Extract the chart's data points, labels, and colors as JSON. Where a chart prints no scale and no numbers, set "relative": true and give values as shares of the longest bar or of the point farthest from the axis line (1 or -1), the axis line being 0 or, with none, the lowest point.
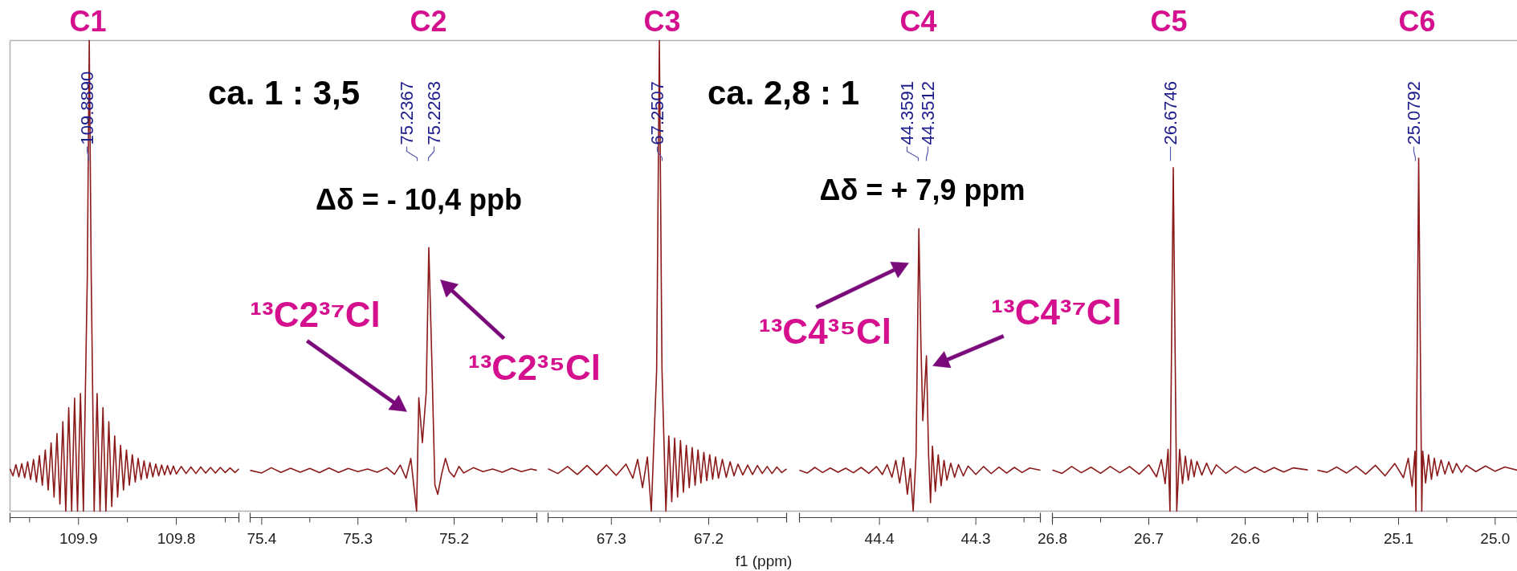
{
  "chart_data": [
    {
      "type": "line",
      "relative": true,
      "color": "#8b1a1a",
      "xlim": [
        109.97,
        109.736
      ],
      "xticks": [
        {
          "value": 109.95,
          "label": null
        },
        109.9,
        {
          "value": 109.85,
          "label": null
        },
        109.8,
        {
          "value": 109.75,
          "label": null
        }
      ],
      "x": [
        109.97,
        109.967,
        109.964,
        109.961,
        109.958,
        109.955,
        109.952,
        109.949,
        109.946,
        109.943,
        109.94,
        109.937,
        109.934,
        109.931,
        109.928,
        109.925,
        109.922,
        109.919,
        109.916,
        109.913,
        109.91,
        109.907,
        109.904,
        109.901,
        109.898,
        109.895,
        109.891,
        109.889,
        109.887,
        109.884,
        109.881,
        109.878,
        109.875,
        109.872,
        109.869,
        109.866,
        109.863,
        109.86,
        109.857,
        109.854,
        109.851,
        109.848,
        109.845,
        109.842,
        109.839,
        109.836,
        109.833,
        109.83,
        109.827,
        109.824,
        109.821,
        109.818,
        109.815,
        109.812,
        109.809,
        109.806,
        109.803,
        109.8,
        109.795,
        109.79,
        109.785,
        109.78,
        109.775,
        109.77,
        109.765,
        109.76,
        109.755,
        109.75,
        109.745,
        109.74,
        109.736
      ],
      "values": [
        0.09,
        0.075,
        0.099,
        0.073,
        0.101,
        0.071,
        0.105,
        0.067,
        0.11,
        0.062,
        0.118,
        0.055,
        0.13,
        0.045,
        0.145,
        0.03,
        0.165,
        0.015,
        0.19,
        0,
        0.22,
        0,
        0.24,
        0,
        0.25,
        0,
        0.5,
        1,
        0.5,
        0,
        0.25,
        0,
        0.22,
        0,
        0.19,
        0.01,
        0.16,
        0.03,
        0.14,
        0.045,
        0.13,
        0.055,
        0.12,
        0.062,
        0.112,
        0.067,
        0.107,
        0.07,
        0.103,
        0.073,
        0.1,
        0.075,
        0.098,
        0.077,
        0.097,
        0.078,
        0.096,
        0.079,
        0.095,
        0.08,
        0.094,
        0.08,
        0.094,
        0.081,
        0.093,
        0.081,
        0.093,
        0.082,
        0.092,
        0.082,
        0.09
      ],
      "annotations": [
        "C1",
        "109.8890"
      ]
    },
    {
      "type": "line",
      "relative": true,
      "color": "#8b1a1a",
      "xlim": [
        75.412,
        75.114
      ],
      "xticks": [
        75.4,
        {
          "value": 75.35,
          "label": null
        },
        75.3,
        {
          "value": 75.25,
          "label": null
        },
        75.2,
        {
          "value": 75.15,
          "label": null
        }
      ],
      "x": [
        75.412,
        75.4,
        75.39,
        75.38,
        75.37,
        75.36,
        75.35,
        75.34,
        75.33,
        75.32,
        75.31,
        75.3,
        75.29,
        75.28,
        75.27,
        75.262,
        75.256,
        75.25,
        75.245,
        75.242,
        75.239,
        75.2367,
        75.233,
        75.229,
        75.2263,
        75.223,
        75.22,
        75.217,
        75.213,
        75.209,
        75.205,
        75.2,
        75.195,
        75.19,
        75.18,
        75.17,
        75.16,
        75.15,
        75.14,
        75.13,
        75.12,
        75.114
      ],
      "values": [
        0.155,
        0.145,
        0.165,
        0.147,
        0.163,
        0.148,
        0.162,
        0.146,
        0.164,
        0.147,
        0.162,
        0.15,
        0.16,
        0.148,
        0.165,
        0.14,
        0.175,
        0.125,
        0.2,
        0.1,
        0,
        0.43,
        0.26,
        0.45,
        1,
        0.55,
        0.1,
        0.064,
        0.14,
        0.2,
        0.15,
        0.13,
        0.17,
        0.145,
        0.165,
        0.15,
        0.16,
        0.148,
        0.163,
        0.15,
        0.16,
        0.155
      ],
      "annotations": [
        "C2",
        "75.2367",
        "75.2263",
        "ca. 1 : 3,5",
        "Δδ = - 10,4 ppb",
        "¹³C2³⁷Cl",
        "¹³C2³⁵Cl"
      ]
    },
    {
      "type": "line",
      "relative": true,
      "color": "#8b1a1a",
      "xlabel": "f1 (ppm)",
      "xlim": [
        67.365,
        67.12
      ],
      "xticks": [
        {
          "value": 67.35,
          "label": null
        },
        67.3,
        {
          "value": 67.25,
          "label": null
        },
        67.2,
        {
          "value": 67.15,
          "label": null
        }
      ],
      "x": [
        67.365,
        67.355,
        67.345,
        67.335,
        67.325,
        67.315,
        67.305,
        67.295,
        67.285,
        67.278,
        67.273,
        67.268,
        67.263,
        67.259,
        67.2535,
        67.2507,
        67.248,
        67.244,
        67.241,
        67.238,
        67.235,
        67.232,
        67.229,
        67.226,
        67.223,
        67.22,
        67.217,
        67.214,
        67.211,
        67.208,
        67.205,
        67.202,
        67.199,
        67.196,
        67.193,
        67.19,
        67.186,
        67.182,
        67.178,
        67.174,
        67.17,
        67.165,
        67.16,
        67.155,
        67.15,
        67.145,
        67.14,
        67.135,
        67.13,
        67.125,
        67.12
      ],
      "values": [
        0.09,
        0.08,
        0.095,
        0.078,
        0.097,
        0.077,
        0.098,
        0.076,
        0.1,
        0.07,
        0.11,
        0.05,
        0.115,
        0,
        0.3,
        1,
        0.3,
        0,
        0.16,
        0.02,
        0.155,
        0.03,
        0.15,
        0.04,
        0.14,
        0.05,
        0.135,
        0.055,
        0.13,
        0.06,
        0.125,
        0.065,
        0.12,
        0.068,
        0.115,
        0.07,
        0.11,
        0.072,
        0.105,
        0.075,
        0.1,
        0.077,
        0.098,
        0.078,
        0.097,
        0.08,
        0.095,
        0.08,
        0.094,
        0.082,
        0.09
      ],
      "annotations": [
        "C3",
        "67.2507"
      ]
    },
    {
      "type": "line",
      "relative": true,
      "color": "#8b1a1a",
      "xlim": [
        44.483,
        44.233
      ],
      "xticks": [
        {
          "value": 44.45,
          "label": null
        },
        44.4,
        {
          "value": 44.35,
          "label": null
        },
        44.3,
        {
          "value": 44.25,
          "label": null
        }
      ],
      "x": [
        44.483,
        44.475,
        44.467,
        44.459,
        44.451,
        44.443,
        44.435,
        44.427,
        44.419,
        44.411,
        44.403,
        44.397,
        44.392,
        44.387,
        44.383,
        44.379,
        44.375,
        44.371,
        44.368,
        44.365,
        44.362,
        44.3591,
        44.357,
        44.355,
        44.3512,
        44.349,
        44.347,
        44.345,
        44.342,
        44.339,
        44.336,
        44.333,
        44.33,
        44.326,
        44.322,
        44.318,
        44.313,
        44.308,
        44.3,
        44.292,
        44.284,
        44.276,
        44.268,
        44.26,
        44.252,
        44.244,
        44.233
      ],
      "values": [
        0.145,
        0.135,
        0.155,
        0.137,
        0.153,
        0.138,
        0.152,
        0.136,
        0.155,
        0.134,
        0.158,
        0.13,
        0.165,
        0.12,
        0.18,
        0.1,
        0.19,
        0.06,
        0.15,
        0,
        0.2,
        1,
        0.6,
        0.32,
        0.55,
        0.2,
        0.03,
        0.23,
        0.07,
        0.2,
        0.09,
        0.18,
        0.11,
        0.17,
        0.12,
        0.165,
        0.125,
        0.16,
        0.13,
        0.158,
        0.133,
        0.156,
        0.135,
        0.155,
        0.137,
        0.153,
        0.145
      ],
      "annotations": [
        "C4",
        "44.3591",
        "44.3512",
        "ca. 2,8 : 1",
        "Δδ = + 7,9 ppm",
        "¹³C4³⁵Cl",
        "¹³C4³⁷Cl"
      ]
    },
    {
      "type": "line",
      "relative": true,
      "color": "#8b1a1a",
      "xlim": [
        26.8,
        26.535
      ],
      "xticks": [
        26.8,
        {
          "value": 26.75,
          "label": null
        },
        26.7,
        {
          "value": 26.65,
          "label": null
        },
        26.6,
        {
          "value": 26.55,
          "label": null
        }
      ],
      "x": [
        26.8,
        26.79,
        26.78,
        26.77,
        26.76,
        26.75,
        26.74,
        26.73,
        26.72,
        26.71,
        26.7,
        26.692,
        26.687,
        26.683,
        26.68,
        26.678,
        26.6746,
        26.671,
        26.668,
        26.665,
        26.662,
        26.659,
        26.656,
        26.653,
        26.65,
        26.645,
        26.64,
        26.635,
        26.63,
        26.62,
        26.61,
        26.6,
        26.59,
        26.58,
        26.57,
        26.56,
        26.55,
        26.535
      ],
      "values": [
        0.12,
        0.11,
        0.13,
        0.112,
        0.128,
        0.11,
        0.13,
        0.112,
        0.13,
        0.108,
        0.135,
        0.1,
        0.15,
        0.08,
        0.18,
        0,
        1,
        0,
        0.18,
        0.08,
        0.16,
        0.09,
        0.15,
        0.1,
        0.145,
        0.105,
        0.14,
        0.107,
        0.135,
        0.11,
        0.13,
        0.112,
        0.128,
        0.113,
        0.127,
        0.114,
        0.126,
        0.12
      ],
      "annotations": [
        "C5",
        "26.6746"
      ]
    },
    {
      "type": "line",
      "relative": true,
      "color": "#8b1a1a",
      "xlim": [
        25.184,
        24.977
      ],
      "xticks": [
        {
          "value": 25.15,
          "label": null
        },
        25.1,
        {
          "value": 25.05,
          "label": null
        },
        {
          "value": 25,
          "label": "25.0"
        }
      ],
      "x": [
        25.184,
        25.174,
        25.164,
        25.154,
        25.144,
        25.134,
        25.124,
        25.114,
        25.104,
        25.095,
        25.09,
        25.086,
        25.083,
        25.082,
        25.0792,
        25.076,
        25.075,
        25.072,
        25.069,
        25.066,
        25.063,
        25.06,
        25.056,
        25.052,
        25.048,
        25.044,
        25.04,
        25.035,
        25.03,
        25.02,
        25.01,
        25.0,
        24.99,
        24.977
      ],
      "values": [
        0.116,
        0.11,
        0.125,
        0.108,
        0.127,
        0.105,
        0.13,
        0.1,
        0.135,
        0.095,
        0.15,
        0.07,
        0.17,
        0,
        1,
        0,
        0.17,
        0.08,
        0.16,
        0.09,
        0.15,
        0.1,
        0.145,
        0.105,
        0.14,
        0.108,
        0.135,
        0.11,
        0.13,
        0.112,
        0.128,
        0.113,
        0.125,
        0.116
      ],
      "annotations": [
        "C6",
        "25.0792"
      ]
    }
  ]
}
